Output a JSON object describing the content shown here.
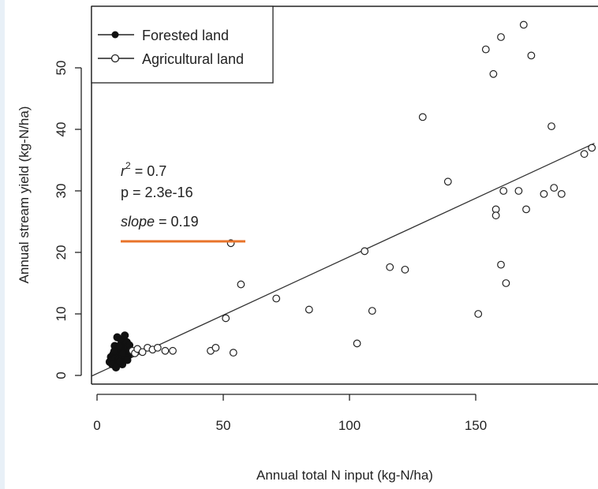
{
  "chart_data": {
    "type": "scatter",
    "xlabel": "Annual total N input (kg-N/ha)",
    "ylabel": "Annual stream yield (kg-N/ha)",
    "xlim": [
      -3,
      197
    ],
    "ylim": [
      -1,
      59
    ],
    "x_ticks": [
      0,
      50,
      100,
      150
    ],
    "y_ticks": [
      0,
      10,
      20,
      30,
      40,
      50
    ],
    "legend": {
      "position": "top-left",
      "entries": [
        {
          "label": "Forested land",
          "marker": "filled-circle"
        },
        {
          "label": "Agricultural land",
          "marker": "open-circle"
        }
      ]
    },
    "annotations": {
      "r2_label": "r",
      "r2_sup": "2",
      "r2_value": " = 0.7",
      "p_text": "p = 2.3e-16",
      "slope_label": "slope",
      "slope_value": " = 0.19",
      "highlight_color": "#e8732a"
    },
    "regression": {
      "intercept": 0.3,
      "slope": 0.19
    },
    "series": [
      {
        "name": "Forested land",
        "style": "filled",
        "points": [
          [
            5,
            2.2
          ],
          [
            5.5,
            3
          ],
          [
            6,
            2.5
          ],
          [
            6.5,
            3.5
          ],
          [
            7,
            2.7
          ],
          [
            7.5,
            2
          ],
          [
            8,
            3.2
          ],
          [
            8.5,
            2.6
          ],
          [
            9,
            3.8
          ],
          [
            9.5,
            4.2
          ],
          [
            10,
            3
          ],
          [
            10.5,
            4.5
          ],
          [
            11,
            5
          ],
          [
            11.5,
            3.6
          ],
          [
            12,
            4.4
          ],
          [
            12.5,
            3.3
          ],
          [
            13,
            4
          ],
          [
            7,
            4.8
          ],
          [
            8,
            6.2
          ],
          [
            9.5,
            5.8
          ],
          [
            11,
            6.5
          ],
          [
            6,
            1.8
          ],
          [
            7.5,
            1.3
          ],
          [
            10,
            1.8
          ],
          [
            12,
            2.5
          ],
          [
            13.5,
            3.8
          ],
          [
            8.8,
            4.8
          ],
          [
            10.2,
            3.6
          ],
          [
            11.8,
            5.4
          ],
          [
            6.8,
            3.9
          ],
          [
            9,
            2.3
          ],
          [
            12.8,
            4.9
          ]
        ]
      },
      {
        "name": "Agricultural land",
        "style": "open",
        "points": [
          [
            14,
            4
          ],
          [
            15,
            3.6
          ],
          [
            16,
            4.3
          ],
          [
            18,
            3.8
          ],
          [
            20,
            4.5
          ],
          [
            22,
            4.2
          ],
          [
            24,
            4.5
          ],
          [
            27,
            4
          ],
          [
            30,
            4
          ],
          [
            45,
            4
          ],
          [
            47,
            4.5
          ],
          [
            54,
            3.7
          ],
          [
            51,
            9.3
          ],
          [
            53,
            21.5
          ],
          [
            57,
            14.8
          ],
          [
            71,
            12.5
          ],
          [
            84,
            10.7
          ],
          [
            103,
            5.2
          ],
          [
            109,
            10.5
          ],
          [
            106,
            20.2
          ],
          [
            116,
            17.6
          ],
          [
            122,
            17.2
          ],
          [
            129,
            42
          ],
          [
            139,
            31.5
          ],
          [
            151,
            10
          ],
          [
            154,
            53
          ],
          [
            157,
            49
          ],
          [
            160,
            55
          ],
          [
            158,
            27
          ],
          [
            158,
            26
          ],
          [
            160,
            18
          ],
          [
            161,
            30
          ],
          [
            162,
            15
          ],
          [
            167,
            30
          ],
          [
            169,
            57
          ],
          [
            170,
            27
          ],
          [
            172,
            52
          ],
          [
            177,
            29.5
          ],
          [
            180,
            40.5
          ],
          [
            181,
            30.5
          ],
          [
            184,
            29.5
          ],
          [
            193,
            36
          ],
          [
            196,
            37
          ]
        ]
      }
    ]
  }
}
